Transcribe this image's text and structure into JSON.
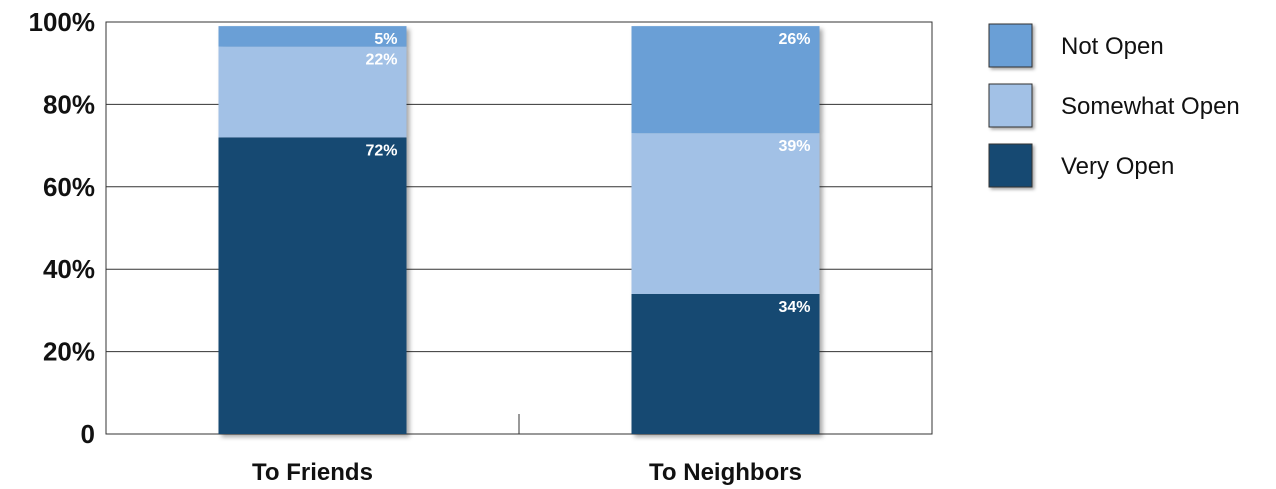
{
  "chart_data": {
    "type": "bar",
    "stacked": true,
    "categories": [
      "To Friends",
      "To Neighbors"
    ],
    "series": [
      {
        "name": "Very Open",
        "values": [
          72,
          34
        ],
        "labels": [
          "72%",
          "34%"
        ],
        "color": "#164872"
      },
      {
        "name": "Somewhat Open",
        "values": [
          22,
          39
        ],
        "labels": [
          "22%",
          "39%"
        ],
        "color": "#a2c1e6"
      },
      {
        "name": "Not Open",
        "values": [
          5,
          26
        ],
        "labels": [
          "5%",
          "26%"
        ],
        "color": "#6a9fd6"
      }
    ],
    "legend_order": [
      "Not Open",
      "Somewhat Open",
      "Very Open"
    ],
    "legend_position": "right",
    "y_ticks": [
      {
        "value": 0,
        "label": "0"
      },
      {
        "value": 20,
        "label": "20%"
      },
      {
        "value": 40,
        "label": "40%"
      },
      {
        "value": 60,
        "label": "60%"
      },
      {
        "value": 80,
        "label": "80%"
      },
      {
        "value": 100,
        "label": "100%"
      }
    ],
    "ylim": [
      0,
      100
    ],
    "grid": true,
    "title": "",
    "xlabel": "",
    "ylabel": ""
  }
}
